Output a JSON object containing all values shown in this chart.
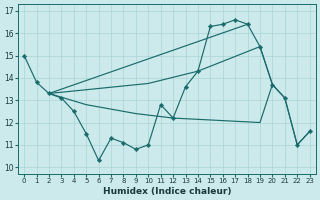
{
  "xlabel": "Humidex (Indice chaleur)",
  "bg_color": "#cce9eb",
  "line_color": "#1a6b6b",
  "grid_color": "#aad4d7",
  "ylim": [
    9.7,
    17.3
  ],
  "xlim": [
    -0.5,
    23.5
  ],
  "yticks": [
    10,
    11,
    12,
    13,
    14,
    15,
    16,
    17
  ],
  "xticks": [
    0,
    1,
    2,
    3,
    4,
    5,
    6,
    7,
    8,
    9,
    10,
    11,
    12,
    13,
    14,
    15,
    16,
    17,
    18,
    19,
    20,
    21,
    22,
    23
  ],
  "main_x": [
    0,
    1,
    2,
    3,
    4,
    5,
    6,
    7,
    8,
    9,
    10,
    11,
    12,
    13,
    14,
    15,
    16,
    17,
    18,
    19,
    20,
    21,
    22,
    23
  ],
  "main_y": [
    15.0,
    13.8,
    13.3,
    13.1,
    12.5,
    11.5,
    10.3,
    11.3,
    11.1,
    10.8,
    11.0,
    12.8,
    12.2,
    13.6,
    14.3,
    16.3,
    16.4,
    16.6,
    16.4,
    15.4,
    13.7,
    13.1,
    11.0,
    11.6
  ],
  "line2_x": [
    2,
    18
  ],
  "line2_y": [
    13.3,
    16.4
  ],
  "line3_x": [
    2,
    10,
    14,
    19,
    20,
    21,
    22,
    23
  ],
  "line3_y": [
    13.3,
    13.75,
    14.3,
    15.4,
    13.7,
    13.1,
    11.0,
    11.6
  ],
  "line4_x": [
    2,
    5,
    9,
    12,
    19,
    20
  ],
  "line4_y": [
    13.3,
    12.8,
    12.4,
    12.2,
    12.0,
    13.7
  ]
}
